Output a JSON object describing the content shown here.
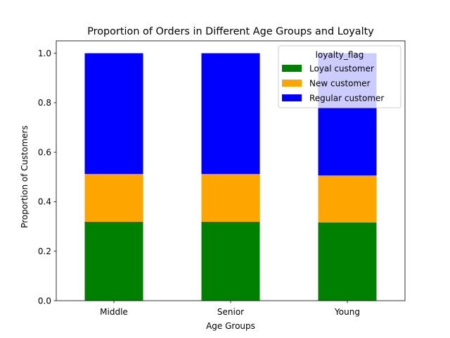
{
  "chart_data": {
    "type": "bar",
    "stacked": true,
    "title": "Proportion of Orders in Different Age Groups and Loyalty",
    "xlabel": "Age Groups",
    "ylabel": "Proportion of Customers",
    "categories": [
      "Middle",
      "Senior",
      "Young"
    ],
    "series": [
      {
        "name": "Loyal customer",
        "color": "#008000",
        "values": [
          0.319,
          0.319,
          0.316
        ]
      },
      {
        "name": "New customer",
        "color": "#FFA500",
        "values": [
          0.193,
          0.193,
          0.19
        ]
      },
      {
        "name": "Regular customer",
        "color": "#0000FF",
        "values": [
          0.488,
          0.488,
          0.494
        ]
      }
    ],
    "ylim": [
      0.0,
      1.05
    ],
    "yticks": [
      "0.0",
      "0.2",
      "0.4",
      "0.6",
      "0.8",
      "1.0"
    ],
    "grid": false,
    "legend": {
      "title": "loyalty_flag",
      "position": "top-right"
    }
  }
}
